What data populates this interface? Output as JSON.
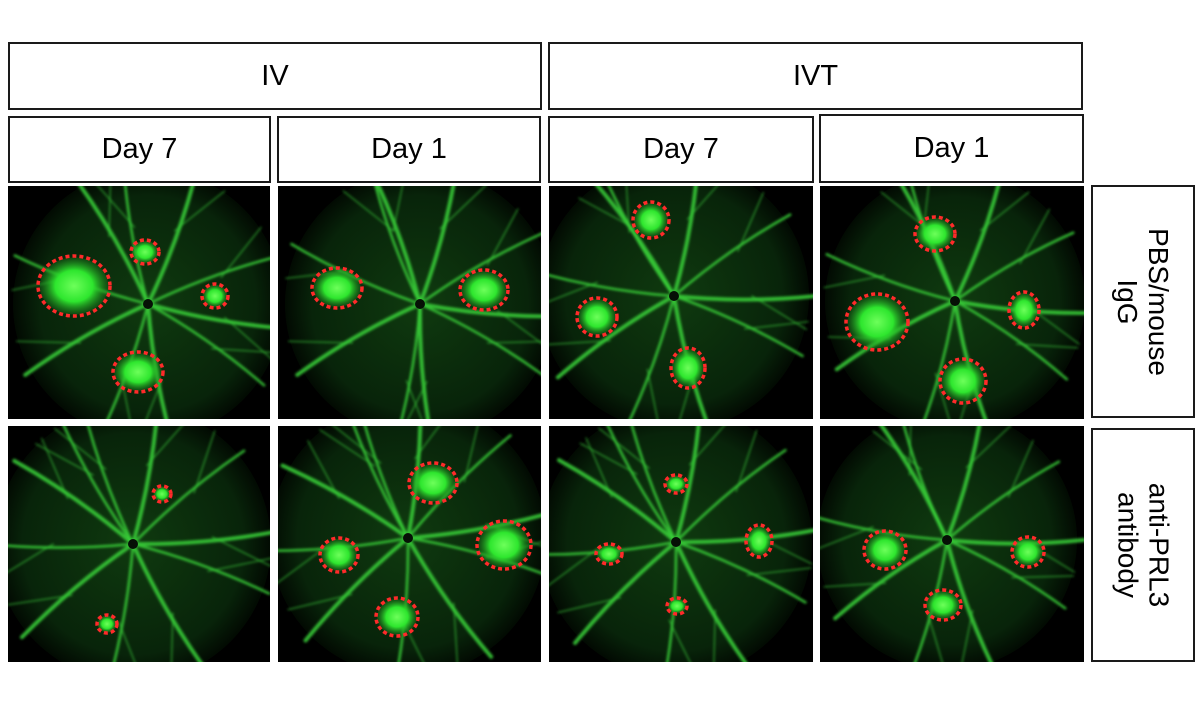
{
  "groups": [
    {
      "label": "IV",
      "days": [
        "Day 7",
        "Day 1"
      ]
    },
    {
      "label": "IVT",
      "days": [
        "Day 7",
        "Day 1"
      ]
    }
  ],
  "rows": [
    {
      "lines": [
        "PBS/mouse",
        "IgG"
      ]
    },
    {
      "lines": [
        "anti-PRL3",
        "antibody"
      ]
    }
  ],
  "colors": {
    "fluorescence": "#2ee62e",
    "vessel": "#3ad43a",
    "lesion_outline": "#ff2a2a",
    "background": "#000000"
  }
}
